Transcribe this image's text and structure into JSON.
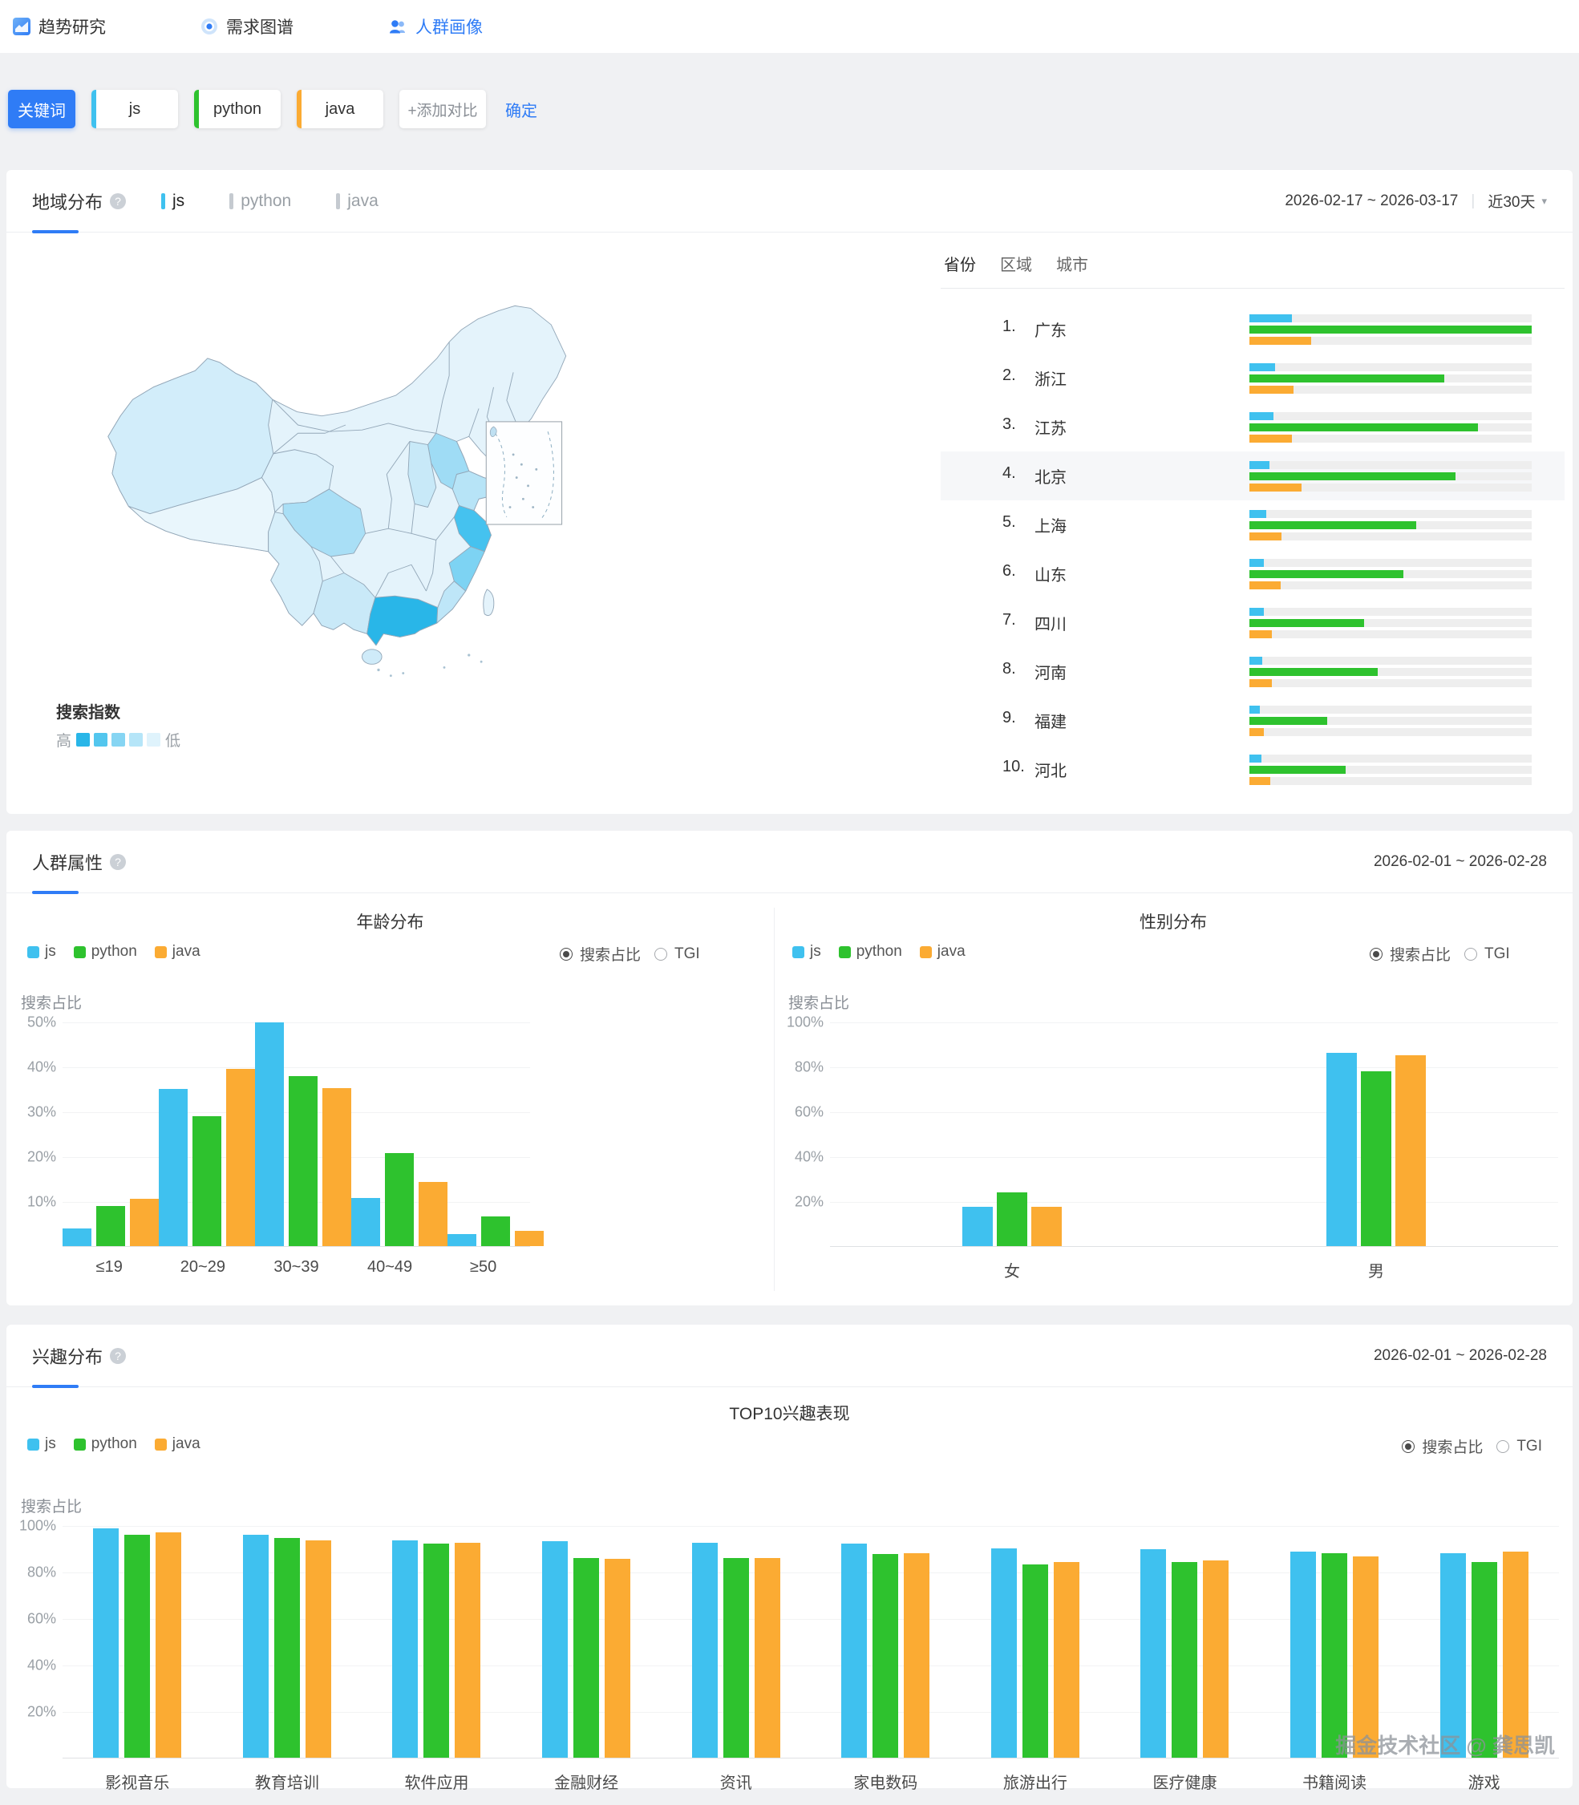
{
  "nav": {
    "items": [
      {
        "label": "趋势研究",
        "active": false
      },
      {
        "label": "需求图谱",
        "active": false
      },
      {
        "label": "人群画像",
        "active": true
      }
    ]
  },
  "keyword_bar": {
    "label_button": "关键词",
    "keywords": [
      {
        "label": "js",
        "color": "#3FC1EF"
      },
      {
        "label": "python",
        "color": "#2EC22E"
      },
      {
        "label": "java",
        "color": "#FBAB33"
      }
    ],
    "add_button": "+添加对比",
    "confirm_button": "确定"
  },
  "colors": {
    "accent": "#2F7CF6",
    "map_high": "#29B6E8",
    "map_low": "#DFF3FC"
  },
  "icons": {
    "help": "?",
    "caret_down": "▾"
  },
  "controls": {
    "radio_selected": "搜索占比",
    "radio_other": "TGI"
  },
  "region_section": {
    "title": "地域分布",
    "tabs": [
      {
        "label": "js",
        "active": true
      },
      {
        "label": "python",
        "active": false
      },
      {
        "label": "java",
        "active": false
      }
    ],
    "date_range": "2026-02-17 ~ 2026-03-17",
    "period_select": "近30天",
    "map_legend": {
      "title": "搜索指数",
      "high": "高",
      "low": "低",
      "scale": [
        "#29B6E8",
        "#53C6EE",
        "#86D5F3",
        "#B5E5F8",
        "#DFF3FC"
      ]
    },
    "list_tabs": [
      {
        "label": "省份",
        "active": true
      },
      {
        "label": "区域",
        "active": false
      },
      {
        "label": "城市",
        "active": false
      }
    ],
    "rows": [
      {
        "rank": "1.",
        "name": "广东",
        "values": [
          15,
          100,
          22
        ],
        "highlight": false
      },
      {
        "rank": "2.",
        "name": "浙江",
        "values": [
          9,
          69,
          15.5
        ],
        "highlight": false
      },
      {
        "rank": "3.",
        "name": "江苏",
        "values": [
          8.5,
          81,
          15
        ],
        "highlight": false
      },
      {
        "rank": "4.",
        "name": "北京",
        "values": [
          7.2,
          73,
          18.5
        ],
        "highlight": true
      },
      {
        "rank": "5.",
        "name": "上海",
        "values": [
          6,
          59,
          11.3
        ],
        "highlight": false
      },
      {
        "rank": "6.",
        "name": "山东",
        "values": [
          5.2,
          54.5,
          11
        ],
        "highlight": false
      },
      {
        "rank": "7.",
        "name": "四川",
        "values": [
          5,
          40.5,
          8
        ],
        "highlight": false
      },
      {
        "rank": "8.",
        "name": "河南",
        "values": [
          4.6,
          45.5,
          8
        ],
        "highlight": false
      },
      {
        "rank": "9.",
        "name": "福建",
        "values": [
          3.6,
          27.5,
          5
        ],
        "highlight": false
      },
      {
        "rank": "10.",
        "name": "河北",
        "values": [
          4.2,
          34,
          7.5
        ],
        "highlight": false
      }
    ]
  },
  "demo_section": {
    "title": "人群属性",
    "date_range": "2026-02-01 ~ 2026-02-28",
    "age_title": "年龄分布",
    "gender_title": "性别分布"
  },
  "interest_section": {
    "title": "兴趣分布",
    "date_range": "2026-02-01 ~ 2026-02-28",
    "chart_title": "TOP10兴趣表现"
  },
  "watermark": "掘金技术社区 @ 龚思凯",
  "chart_data": [
    {
      "type": "bar",
      "title": "年龄分布",
      "ylabel": "搜索占比",
      "ymax": 50,
      "yticks": [
        "50%",
        "40%",
        "30%",
        "20%",
        "10%"
      ],
      "grid": true,
      "legend_position": "top-left",
      "categories": [
        "≤19",
        "20~29",
        "30~39",
        "40~49",
        "≥50"
      ],
      "series": [
        {
          "name": "js",
          "color": "#3FC1EF",
          "values": [
            4,
            35,
            49.8,
            10.8,
            2.6
          ]
        },
        {
          "name": "python",
          "color": "#2EC22E",
          "values": [
            9,
            29,
            37.8,
            20.8,
            6.6
          ]
        },
        {
          "name": "java",
          "color": "#FBAB33",
          "values": [
            10.5,
            39.5,
            35.2,
            14.3,
            3.4
          ]
        }
      ]
    },
    {
      "type": "bar",
      "title": "性别分布",
      "ylabel": "搜索占比",
      "ymax": 100,
      "yticks": [
        "100%",
        "80%",
        "60%",
        "40%",
        "20%"
      ],
      "grid": true,
      "legend_position": "top-left",
      "categories": [
        "女",
        "男"
      ],
      "series": [
        {
          "name": "js",
          "color": "#3FC1EF",
          "values": [
            17.5,
            86
          ]
        },
        {
          "name": "python",
          "color": "#2EC22E",
          "values": [
            24,
            78
          ]
        },
        {
          "name": "java",
          "color": "#FBAB33",
          "values": [
            17.5,
            85
          ]
        }
      ]
    },
    {
      "type": "bar",
      "title": "TOP10兴趣表现",
      "ylabel": "搜索占比",
      "ymax": 100,
      "yticks": [
        "100%",
        "80%",
        "60%",
        "40%",
        "20%"
      ],
      "grid": true,
      "legend_position": "top-left",
      "categories": [
        "影视音乐",
        "教育培训",
        "软件应用",
        "金融财经",
        "资讯",
        "家电数码",
        "旅游出行",
        "医疗健康",
        "书籍阅读",
        "游戏"
      ],
      "series": [
        {
          "name": "js",
          "color": "#3FC1EF",
          "values": [
            98.5,
            96,
            93.5,
            93,
            92.5,
            92,
            90,
            89.5,
            88.5,
            88
          ]
        },
        {
          "name": "python",
          "color": "#2EC22E",
          "values": [
            96,
            94.5,
            92,
            86,
            86,
            87.5,
            83,
            84,
            88,
            84
          ]
        },
        {
          "name": "java",
          "color": "#FBAB33",
          "values": [
            97,
            93.5,
            92.5,
            85.5,
            86,
            88,
            84,
            85,
            86.5,
            88.5
          ]
        }
      ]
    }
  ]
}
